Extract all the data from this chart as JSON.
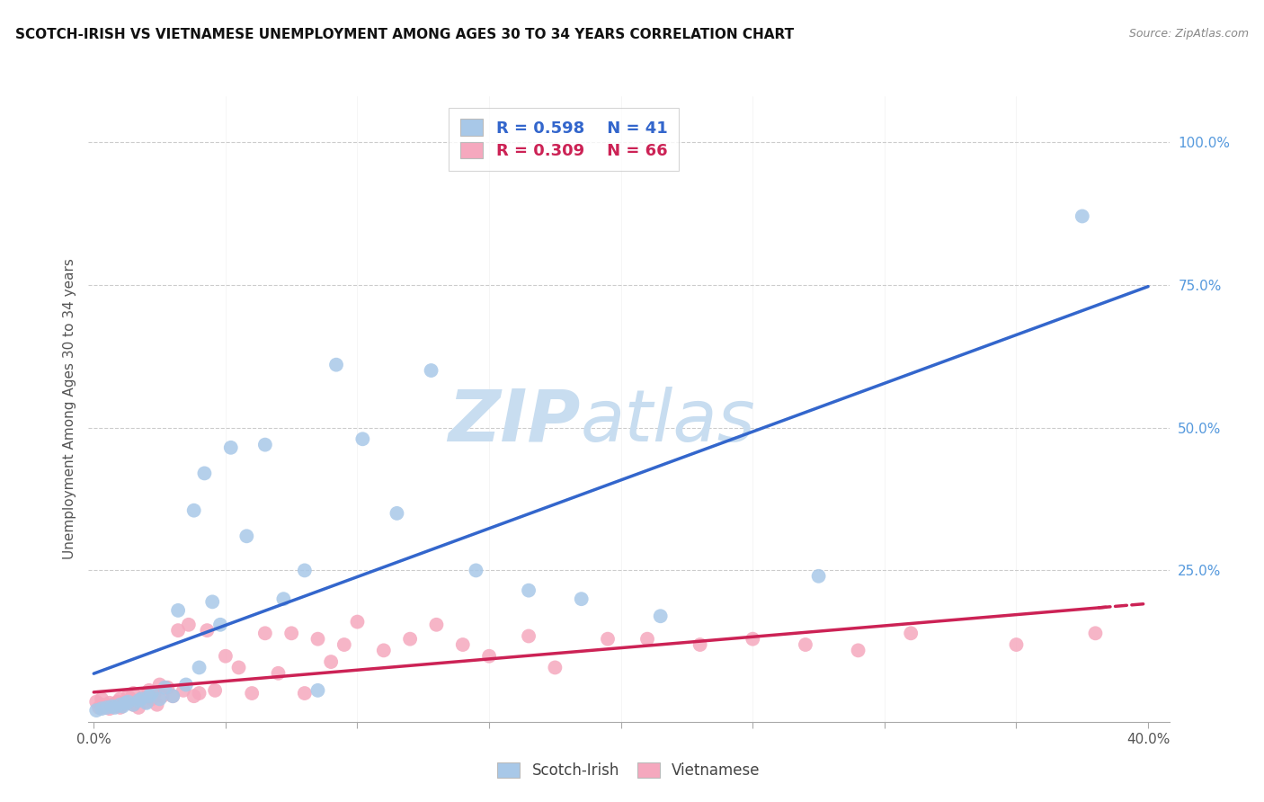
{
  "title": "SCOTCH-IRISH VS VIETNAMESE UNEMPLOYMENT AMONG AGES 30 TO 34 YEARS CORRELATION CHART",
  "source": "Source: ZipAtlas.com",
  "ylabel": "Unemployment Among Ages 30 to 34 years",
  "xlim": [
    -0.002,
    0.408
  ],
  "ylim": [
    -0.015,
    1.08
  ],
  "xtick_positions": [
    0.0,
    0.05,
    0.1,
    0.15,
    0.2,
    0.25,
    0.3,
    0.35,
    0.4
  ],
  "ytick_positions": [
    0.0,
    0.25,
    0.5,
    0.75,
    1.0
  ],
  "scotch_irish_R": 0.598,
  "scotch_irish_N": 41,
  "vietnamese_R": 0.309,
  "vietnamese_N": 66,
  "si_color": "#a8c8e8",
  "si_line_color": "#3366cc",
  "vn_color": "#f5a8be",
  "vn_line_color": "#cc2255",
  "si_x": [
    0.001,
    0.003,
    0.005,
    0.007,
    0.008,
    0.01,
    0.011,
    0.012,
    0.013,
    0.015,
    0.017,
    0.018,
    0.02,
    0.021,
    0.022,
    0.025,
    0.027,
    0.03,
    0.032,
    0.035,
    0.038,
    0.04,
    0.042,
    0.045,
    0.048,
    0.052,
    0.058,
    0.065,
    0.072,
    0.08,
    0.085,
    0.092,
    0.102,
    0.115,
    0.128,
    0.145,
    0.165,
    0.185,
    0.215,
    0.275,
    0.375
  ],
  "si_y": [
    0.005,
    0.008,
    0.01,
    0.012,
    0.01,
    0.015,
    0.012,
    0.018,
    0.02,
    0.015,
    0.022,
    0.025,
    0.018,
    0.03,
    0.035,
    0.025,
    0.045,
    0.03,
    0.18,
    0.05,
    0.355,
    0.08,
    0.42,
    0.195,
    0.155,
    0.465,
    0.31,
    0.47,
    0.2,
    0.25,
    0.04,
    0.61,
    0.48,
    0.35,
    0.6,
    0.25,
    0.215,
    0.2,
    0.17,
    0.24,
    0.87
  ],
  "vn_x": [
    0.001,
    0.002,
    0.003,
    0.003,
    0.004,
    0.005,
    0.006,
    0.006,
    0.007,
    0.008,
    0.009,
    0.01,
    0.01,
    0.011,
    0.012,
    0.013,
    0.014,
    0.015,
    0.015,
    0.016,
    0.017,
    0.018,
    0.019,
    0.02,
    0.021,
    0.022,
    0.023,
    0.024,
    0.025,
    0.026,
    0.028,
    0.03,
    0.032,
    0.034,
    0.036,
    0.038,
    0.04,
    0.043,
    0.046,
    0.05,
    0.055,
    0.06,
    0.065,
    0.07,
    0.075,
    0.08,
    0.085,
    0.09,
    0.095,
    0.1,
    0.11,
    0.12,
    0.13,
    0.14,
    0.15,
    0.165,
    0.175,
    0.195,
    0.21,
    0.23,
    0.25,
    0.27,
    0.29,
    0.31,
    0.35,
    0.38
  ],
  "vn_y": [
    0.02,
    0.01,
    0.015,
    0.025,
    0.01,
    0.012,
    0.008,
    0.018,
    0.015,
    0.012,
    0.02,
    0.01,
    0.025,
    0.015,
    0.02,
    0.03,
    0.025,
    0.015,
    0.035,
    0.02,
    0.01,
    0.025,
    0.03,
    0.02,
    0.04,
    0.025,
    0.035,
    0.015,
    0.05,
    0.03,
    0.045,
    0.03,
    0.145,
    0.04,
    0.155,
    0.03,
    0.035,
    0.145,
    0.04,
    0.1,
    0.08,
    0.035,
    0.14,
    0.07,
    0.14,
    0.035,
    0.13,
    0.09,
    0.12,
    0.16,
    0.11,
    0.13,
    0.155,
    0.12,
    0.1,
    0.135,
    0.08,
    0.13,
    0.13,
    0.12,
    0.13,
    0.12,
    0.11,
    0.14,
    0.12,
    0.14
  ]
}
